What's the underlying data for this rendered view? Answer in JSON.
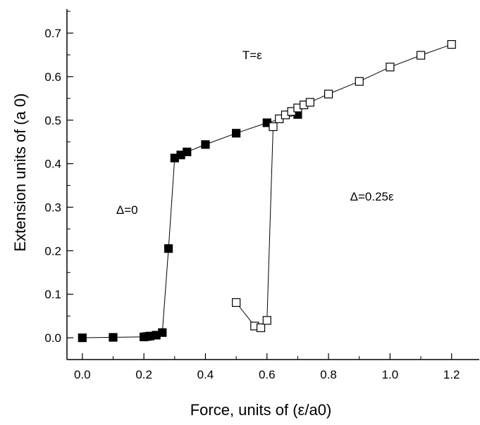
{
  "chart_data": {
    "type": "scatter",
    "title": "",
    "xlabel": "Force, units of (ε/a0)",
    "ylabel": "Extension units of (a 0)",
    "xlim": [
      -0.05,
      1.29
    ],
    "ylim": [
      -0.05,
      0.755
    ],
    "xticks": [
      0.0,
      0.2,
      0.4,
      0.6,
      0.8,
      1.0,
      1.2
    ],
    "yticks": [
      0.0,
      0.1,
      0.2,
      0.3,
      0.4,
      0.5,
      0.6,
      0.7
    ],
    "xtick_labels": [
      "0.0",
      "0.2",
      "0.4",
      "0.6",
      "0.8",
      "1.0",
      "1.2"
    ],
    "ytick_labels": [
      "0.0",
      "0.1",
      "0.2",
      "0.3",
      "0.4",
      "0.5",
      "0.6",
      "0.7"
    ],
    "grid": false,
    "legend": "none",
    "series": [
      {
        "marker": "filled-square",
        "color": "#000000",
        "points": [
          [
            0.0,
            0.0
          ],
          [
            0.1,
            0.001
          ],
          [
            0.2,
            0.002
          ],
          [
            0.21,
            0.003
          ],
          [
            0.22,
            0.004
          ],
          [
            0.24,
            0.006
          ],
          [
            0.26,
            0.012
          ],
          [
            0.28,
            0.205
          ],
          [
            0.3,
            0.413
          ],
          [
            0.32,
            0.42
          ],
          [
            0.34,
            0.427
          ],
          [
            0.4,
            0.444
          ],
          [
            0.5,
            0.47
          ],
          [
            0.6,
            0.494
          ],
          [
            0.7,
            0.513
          ]
        ]
      },
      {
        "marker": "open-square",
        "color": "#000000",
        "points": [
          [
            0.5,
            0.081
          ],
          [
            0.56,
            0.027
          ],
          [
            0.58,
            0.023
          ],
          [
            0.6,
            0.04
          ],
          [
            0.62,
            0.485
          ],
          [
            0.64,
            0.503
          ],
          [
            0.66,
            0.512
          ],
          [
            0.68,
            0.52
          ],
          [
            0.7,
            0.528
          ],
          [
            0.72,
            0.535
          ],
          [
            0.74,
            0.541
          ],
          [
            0.8,
            0.56
          ],
          [
            0.9,
            0.589
          ],
          [
            1.0,
            0.622
          ],
          [
            1.1,
            0.649
          ],
          [
            1.2,
            0.674
          ]
        ]
      }
    ],
    "annotations": [
      {
        "text": "T=ε",
        "x": 0.52,
        "y": 0.64
      },
      {
        "text": "Δ=0",
        "x": 0.11,
        "y": 0.285
      },
      {
        "text": "Δ=0.25ε",
        "x": 0.87,
        "y": 0.315
      }
    ]
  }
}
